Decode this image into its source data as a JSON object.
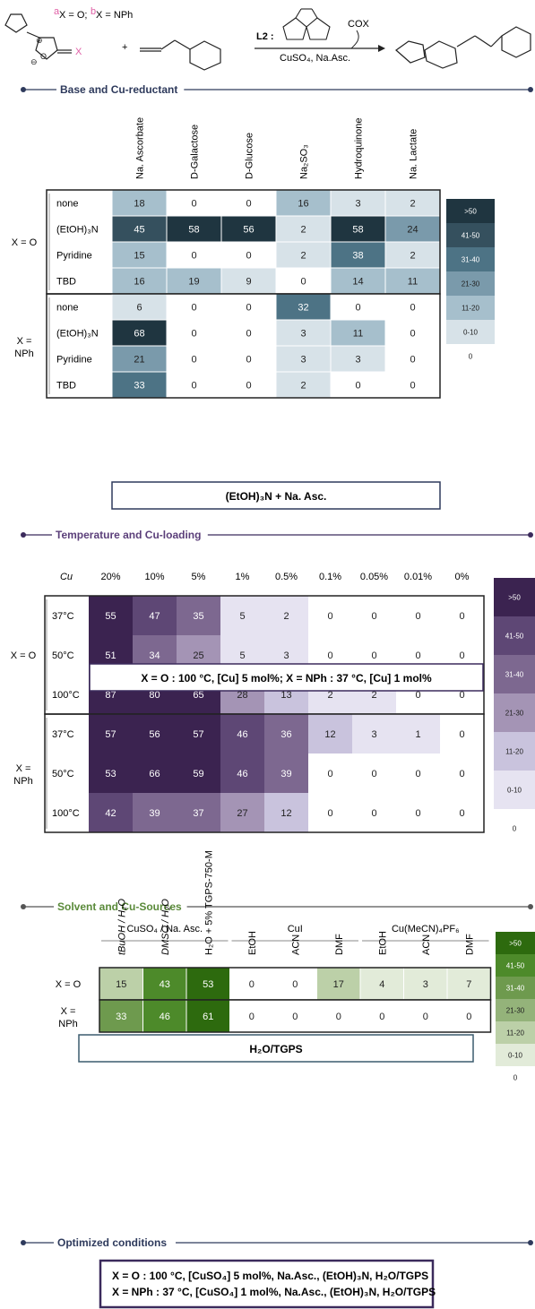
{
  "scheme": {
    "label_a_x": "X = O;",
    "label_b_x": "X = NPh",
    "sup_a": "a",
    "sup_b": "b",
    "plus": "+",
    "ligand": "L2 :",
    "reagents": "CuSO₄, Na.Asc.",
    "byproduct": "COX"
  },
  "chart_data": [
    {
      "type": "heatmap",
      "section_title": "Base and Cu-reductant",
      "columns": [
        "Na. Ascorbate",
        "D-Galactose",
        "D-Glucose",
        "Na₂SO₃",
        "Hydroquinone",
        "Na. Lactate"
      ],
      "groups": [
        {
          "label": "X = O",
          "rows": [
            {
              "label": "none",
              "values": [
                18,
                0,
                0,
                16,
                3,
                2
              ]
            },
            {
              "label": "(EtOH)₃N",
              "values": [
                45,
                58,
                56,
                2,
                58,
                24
              ]
            },
            {
              "label": "Pyridine",
              "values": [
                15,
                0,
                0,
                2,
                38,
                2
              ]
            },
            {
              "label": "TBD",
              "values": [
                16,
                19,
                9,
                0,
                14,
                11
              ]
            }
          ]
        },
        {
          "label": "X = NPh",
          "rows": [
            {
              "label": "none",
              "values": [
                6,
                0,
                0,
                32,
                0,
                0
              ]
            },
            {
              "label": "(EtOH)₃N",
              "values": [
                68,
                0,
                0,
                3,
                11,
                0
              ]
            },
            {
              "label": "Pyridine",
              "values": [
                21,
                0,
                0,
                3,
                3,
                0
              ]
            },
            {
              "label": "TBD",
              "values": [
                33,
                0,
                0,
                2,
                0,
                0
              ]
            }
          ]
        }
      ],
      "legend": [
        ">50",
        "41-50",
        "31-40",
        "21-30",
        "11-20",
        "0-10",
        "0"
      ],
      "legend_colors": [
        "#1f3540",
        "#35505e",
        "#4d7385",
        "#7a9aab",
        "#a6bfcc",
        "#d7e2e8",
        "#ffffff"
      ],
      "conclusion": "(EtOH)₃N + Na. Asc."
    },
    {
      "type": "heatmap",
      "section_title": "Temperature and Cu-loading",
      "corner_label": "Cu",
      "columns": [
        "20%",
        "10%",
        "5%",
        "1%",
        "0.5%",
        "0.1%",
        "0.05%",
        "0.01%",
        "0%"
      ],
      "groups": [
        {
          "label": "X = O",
          "rows": [
            {
              "label": "37°C",
              "values": [
                55,
                47,
                35,
                5,
                2,
                0,
                0,
                0,
                0
              ]
            },
            {
              "label": "50°C",
              "values": [
                51,
                34,
                25,
                5,
                3,
                0,
                0,
                0,
                0
              ]
            },
            {
              "label": "100°C",
              "values": [
                87,
                80,
                65,
                28,
                13,
                2,
                2,
                0,
                0
              ]
            }
          ]
        },
        {
          "label": "X = NPh",
          "rows": [
            {
              "label": "37°C",
              "values": [
                57,
                56,
                57,
                46,
                36,
                12,
                3,
                1,
                0
              ]
            },
            {
              "label": "50°C",
              "values": [
                53,
                66,
                59,
                46,
                39,
                0,
                0,
                0,
                0
              ]
            },
            {
              "label": "100°C",
              "values": [
                42,
                39,
                37,
                27,
                12,
                0,
                0,
                0,
                0
              ]
            }
          ]
        }
      ],
      "legend": [
        ">50",
        "41-50",
        "31-40",
        "21-30",
        "11-20",
        "0-10",
        "0"
      ],
      "legend_colors": [
        "#3b2350",
        "#5e4775",
        "#7d6890",
        "#a494b5",
        "#c9c3dd",
        "#e6e3f1",
        "#ffffff"
      ],
      "conclusion": "X = O : 100 °C, [Cu] 5 mol%;  X = NPh : 37 °C, [Cu] 1 mol%"
    },
    {
      "type": "heatmap",
      "section_title": "Solvent and Cu-Sources",
      "column_groups": [
        "CuSO₄ / Na. Asc.",
        "CuI",
        "Cu(MeCN)₄PF₆"
      ],
      "columns": [
        "tBuOH / H₂O",
        "DMSO / H₂O",
        "H₂O + 5% TGPS-750-M",
        "EtOH",
        "ACN",
        "DMF",
        "EtOH",
        "ACN",
        "DMF"
      ],
      "groups": [
        {
          "label": "X = O",
          "rows": [
            {
              "label": "",
              "values": [
                15,
                43,
                53,
                0,
                0,
                17,
                4,
                3,
                7
              ]
            }
          ]
        },
        {
          "label": "X = NPh",
          "rows": [
            {
              "label": "",
              "values": [
                33,
                46,
                61,
                0,
                0,
                0,
                0,
                0,
                0
              ]
            }
          ]
        }
      ],
      "legend": [
        ">50",
        "41-50",
        "31-40",
        "21-30",
        "11-20",
        "0-10",
        "0"
      ],
      "legend_colors": [
        "#2d6a0e",
        "#4d8a2a",
        "#6e9a4e",
        "#94b37a",
        "#bcd0a8",
        "#e2ebd9",
        "#ffffff"
      ],
      "conclusion": "H₂O/TGPS"
    }
  ],
  "optimized": {
    "section_title": "Optimized conditions",
    "line1": "X = O : 100 °C, [CuSO₄] 5 mol%,  Na.Asc., (EtOH)₃N, H₂O/TGPS",
    "line2": "X = NPh : 37 °C, [CuSO₄] 1 mol%,  Na.Asc., (EtOH)₃N, H₂O/TGPS"
  }
}
